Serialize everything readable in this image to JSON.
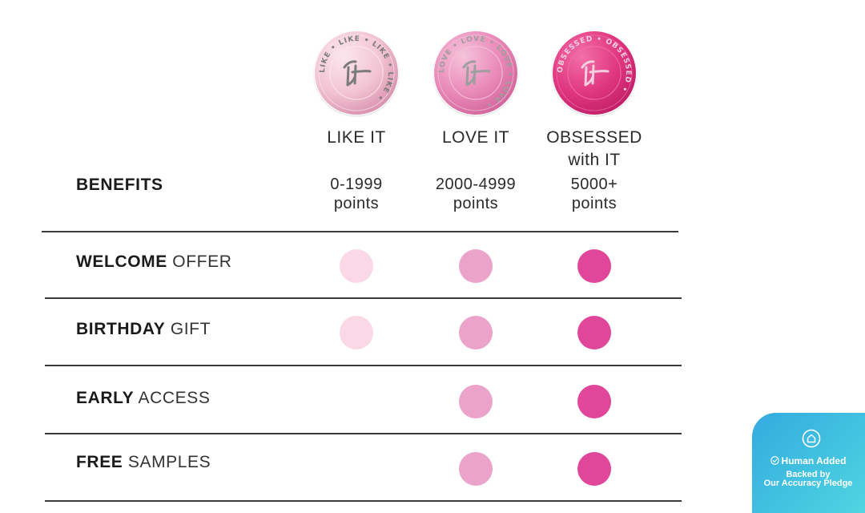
{
  "tiers": [
    {
      "name": "LIKE IT",
      "points_range": "0-1999",
      "points_unit": "points",
      "medal_ring_text": "LIKE • LIKE • LIKE • LIKE •",
      "medal_colors": {
        "base": "#f2c3d3",
        "light": "#fbe6ee",
        "dark": "#d991ad",
        "text": "#7b7b7b"
      },
      "icon": "it-logo-medal-icon"
    },
    {
      "name": "LOVE IT",
      "points_range": "2000-4999",
      "points_unit": "points",
      "medal_ring_text": "LOVE • LOVE • LOVE • LOVE •",
      "medal_colors": {
        "base": "#e989b7",
        "light": "#f6c3db",
        "dark": "#d2659d",
        "text": "#9e9e9e"
      },
      "icon": "it-logo-medal-icon"
    },
    {
      "name": "OBSESSED\nwith IT",
      "points_range": "5000+",
      "points_unit": "points",
      "medal_ring_text": "OBSESSED • OBSESSED •",
      "medal_colors": {
        "base": "#e0367f",
        "light": "#f26fa8",
        "dark": "#c21f69",
        "text": "#f5cfe0"
      },
      "icon": "it-logo-medal-icon"
    }
  ],
  "benefits_heading": "BENEFITS",
  "rows": [
    {
      "bold": "WELCOME",
      "rest": "OFFER",
      "available": [
        true,
        true,
        true
      ]
    },
    {
      "bold": "BIRTHDAY",
      "rest": "GIFT",
      "available": [
        true,
        true,
        true
      ]
    },
    {
      "bold": "EARLY",
      "rest": "ACCESS",
      "available": [
        false,
        true,
        true
      ]
    },
    {
      "bold": "FREE",
      "rest": "SAMPLES",
      "available": [
        false,
        true,
        true
      ]
    }
  ],
  "dot_colors": [
    "#fad8e6",
    "#eba3c9",
    "#e0479a"
  ],
  "badge": {
    "title": "Human Added",
    "line1": "Backed by",
    "line2": "Our Accuracy Pledge",
    "icon": "home-circle-icon",
    "check_icon": "check-circle-icon"
  }
}
